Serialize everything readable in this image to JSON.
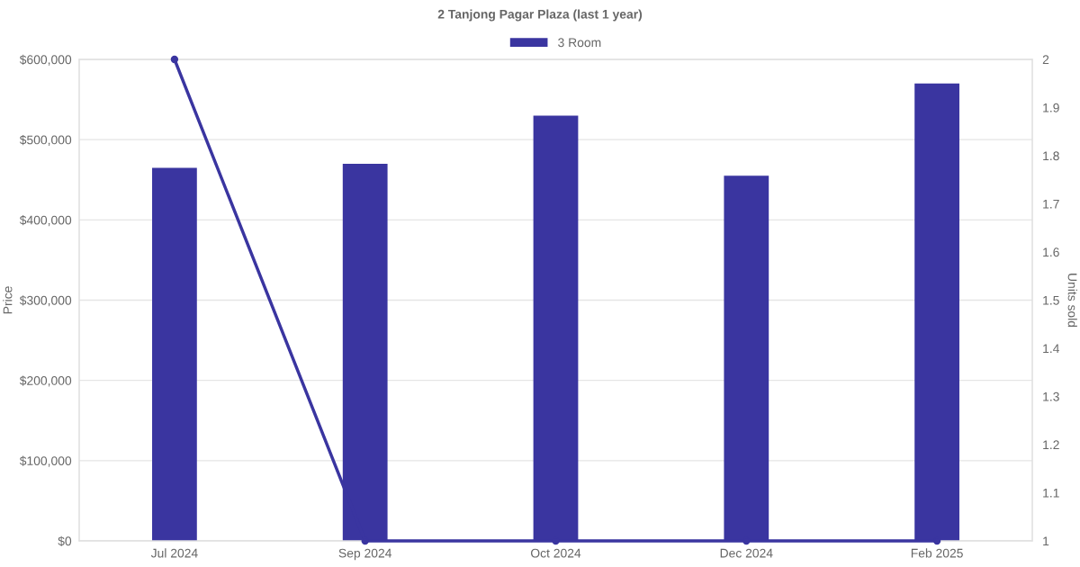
{
  "chart_data": {
    "type": "bar",
    "title": "2 Tanjong Pagar Plaza (last 1 year)",
    "ylabel": "Price",
    "y2label": "Units sold",
    "categories": [
      "Jul 2024",
      "Sep 2024",
      "Oct 2024",
      "Dec 2024",
      "Feb 2025"
    ],
    "series": [
      {
        "name": "3 Room",
        "color": "#3a35a0",
        "values": [
          465000,
          470000,
          530000,
          455000,
          570000
        ]
      },
      {
        "type": "line",
        "axis": "y2",
        "color": "#3a35a0",
        "marker": "circle",
        "values": [
          2,
          1,
          1,
          1,
          1
        ]
      }
    ],
    "ylim": [
      0,
      600000
    ],
    "yticks": [
      {
        "value": 0,
        "label": "$0"
      },
      {
        "value": 100000,
        "label": "$100,000"
      },
      {
        "value": 200000,
        "label": "$200,000"
      },
      {
        "value": 300000,
        "label": "$300,000"
      },
      {
        "value": 400000,
        "label": "$400,000"
      },
      {
        "value": 500000,
        "label": "$500,000"
      },
      {
        "value": 600000,
        "label": "$600,000"
      }
    ],
    "y2lim": [
      1,
      2
    ],
    "y2ticks": [
      1,
      1.1,
      1.2,
      1.3,
      1.4,
      1.5,
      1.6,
      1.7,
      1.8,
      1.9,
      2
    ],
    "grid": "y",
    "legend": "top"
  }
}
